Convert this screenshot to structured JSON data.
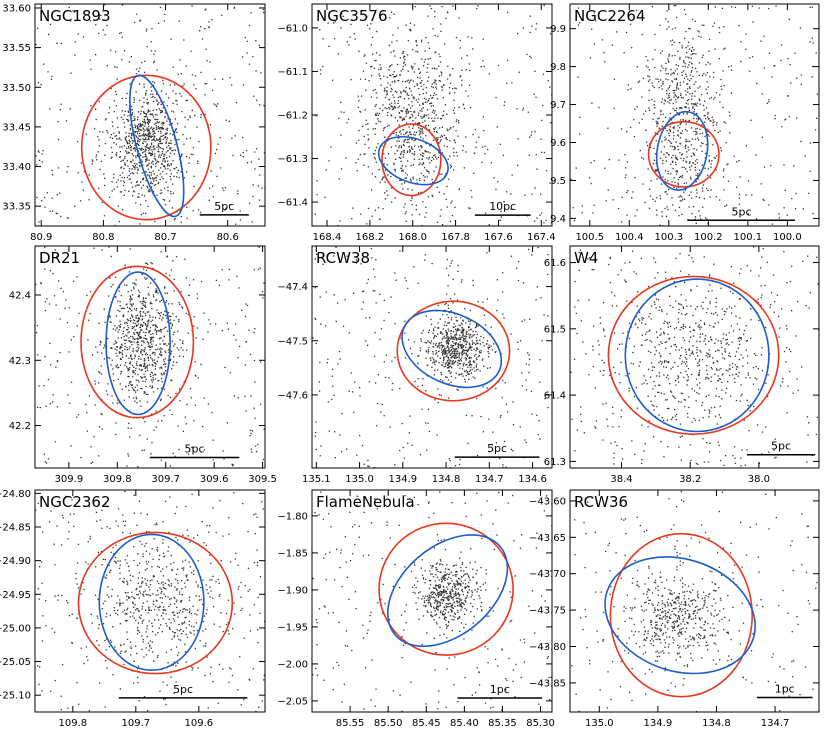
{
  "colors": {
    "red_ellipse": "#e8381c",
    "blue_ellipse": "#1c5ccc",
    "star_points": "#333333",
    "frame": "#000000"
  },
  "chart_data": [
    {
      "type": "scatter",
      "title": "NGC1893",
      "xlim": [
        80.91,
        80.54
      ],
      "ylim": [
        33.325,
        33.605
      ],
      "xticks": [
        80.9,
        80.8,
        80.7,
        80.6
      ],
      "xtick_labels": [
        "80.9",
        "80.8",
        "80.7",
        "80.6"
      ],
      "yticks": [
        33.35,
        33.4,
        33.45,
        33.5,
        33.55,
        33.6
      ],
      "ytick_labels": [
        "33.35",
        "33.40",
        "33.45",
        "33.50",
        "33.55",
        "33.60"
      ],
      "scale_bar": {
        "label": "5pc",
        "x1": 80.645,
        "x2": 80.566,
        "y": 33.339
      },
      "red_ellipse": {
        "cx": 80.731,
        "cy": 33.424,
        "rx": 0.104,
        "ry": 0.091,
        "angle": 0
      },
      "blue_ellipse": {
        "cx": 80.714,
        "cy": 33.426,
        "rx": 0.032,
        "ry": 0.092,
        "angle": -15
      },
      "stars": {
        "count": 1100,
        "cx": 80.73,
        "cy": 33.43,
        "sx": 0.03,
        "sy": 0.035,
        "background_fraction": 0.3
      }
    },
    {
      "type": "scatter",
      "title": "NGC3576",
      "xlim": [
        168.47,
        167.35
      ],
      "ylim": [
        -61.455,
        -60.945
      ],
      "xticks": [
        168.4,
        168.2,
        168.0,
        167.8,
        167.6,
        167.4
      ],
      "xtick_labels": [
        "168.4",
        "168.2",
        "168.0",
        "167.8",
        "167.6",
        "167.4"
      ],
      "yticks": [
        -61.4,
        -61.3,
        -61.2,
        -61.1,
        -61.0
      ],
      "ytick_labels": [
        "−61.4",
        "−61.3",
        "−61.2",
        "−61.1",
        "−61.0"
      ],
      "scale_bar": {
        "label": "10pc",
        "x1": 167.71,
        "x2": 167.45,
        "y": -61.43
      },
      "red_ellipse": {
        "cx": 168.006,
        "cy": -61.303,
        "rx": 0.137,
        "ry": 0.082,
        "angle": 0
      },
      "blue_ellipse": {
        "cx": 167.997,
        "cy": -61.305,
        "rx": 0.168,
        "ry": 0.05,
        "angle": 20
      },
      "stars": {
        "count": 1000,
        "cx": 168.0,
        "cy": -61.2,
        "sx": 0.12,
        "sy": 0.1,
        "background_fraction": 0.3
      }
    },
    {
      "type": "scatter",
      "title": "NGC2264",
      "xlim": [
        100.55,
        99.92
      ],
      "ylim": [
        9.38,
        9.965
      ],
      "xticks": [
        100.5,
        100.4,
        100.3,
        100.2,
        100.1,
        100.0
      ],
      "xtick_labels": [
        "100.5",
        "100.4",
        "100.3",
        "100.2",
        "100.1",
        "100.0"
      ],
      "yticks": [
        9.4,
        9.5,
        9.6,
        9.7,
        9.8,
        9.9
      ],
      "ytick_labels": [
        "9.4",
        "9.5",
        "9.6",
        "9.7",
        "9.8",
        "9.9"
      ],
      "scale_bar": {
        "label": "5pc",
        "x1": 100.251,
        "x2": 99.981,
        "y": 9.395
      },
      "red_ellipse": {
        "cx": 100.262,
        "cy": 9.569,
        "rx": 0.089,
        "ry": 0.086,
        "angle": 0
      },
      "blue_ellipse": {
        "cx": 100.266,
        "cy": 9.578,
        "rx": 0.063,
        "ry": 0.104,
        "angle": 10
      },
      "stars": {
        "count": 900,
        "cx": 100.27,
        "cy": 9.65,
        "sx": 0.05,
        "sy": 0.13,
        "background_fraction": 0.3
      }
    },
    {
      "type": "scatter",
      "title": "DR21",
      "xlim": [
        309.97,
        309.495
      ],
      "ylim": [
        42.135,
        42.475
      ],
      "xticks": [
        309.9,
        309.8,
        309.7,
        309.6,
        309.5
      ],
      "xtick_labels": [
        "309.9",
        "309.8",
        "309.7",
        "309.6",
        "309.5"
      ],
      "yticks": [
        42.2,
        42.3,
        42.4
      ],
      "ytick_labels": [
        "42.2",
        "42.3",
        "42.4"
      ],
      "scale_bar": {
        "label": "5pc",
        "x1": 309.733,
        "x2": 309.548,
        "y": 42.151
      },
      "red_ellipse": {
        "cx": 309.759,
        "cy": 42.328,
        "rx": 0.116,
        "ry": 0.116,
        "angle": 0
      },
      "blue_ellipse": {
        "cx": 309.757,
        "cy": 42.326,
        "rx": 0.066,
        "ry": 0.109,
        "angle": 0
      },
      "stars": {
        "count": 1000,
        "cx": 309.75,
        "cy": 42.33,
        "sx": 0.04,
        "sy": 0.05,
        "background_fraction": 0.3
      }
    },
    {
      "type": "scatter",
      "title": "RCW38",
      "xlim": [
        135.11,
        134.555
      ],
      "ylim": [
        -47.735,
        -47.325
      ],
      "xticks": [
        135.1,
        135.0,
        134.9,
        134.8,
        134.7,
        134.6
      ],
      "xtick_labels": [
        "135.1",
        "135.0",
        "134.9",
        "134.8",
        "134.7",
        "134.6"
      ],
      "yticks": [
        -47.6,
        -47.5,
        -47.4
      ],
      "ytick_labels": [
        "−47.6",
        "−47.5",
        "−47.4"
      ],
      "scale_bar": {
        "label": "5pc",
        "x1": 134.78,
        "x2": 134.584,
        "y": -47.715
      },
      "red_ellipse": {
        "cx": 134.783,
        "cy": -47.519,
        "rx": 0.13,
        "ry": 0.092,
        "angle": 0
      },
      "blue_ellipse": {
        "cx": 134.787,
        "cy": -47.515,
        "rx": 0.121,
        "ry": 0.064,
        "angle": 25
      },
      "stars": {
        "count": 900,
        "cx": 134.78,
        "cy": -47.515,
        "sx": 0.035,
        "sy": 0.03,
        "background_fraction": 0.35
      }
    },
    {
      "type": "scatter",
      "title": "W4",
      "xlim": [
        38.55,
        37.825
      ],
      "ylim": [
        61.29,
        61.625
      ],
      "xticks": [
        38.4,
        38.2,
        38.0
      ],
      "xtick_labels": [
        "38.4",
        "38.2",
        "38.0"
      ],
      "yticks": [
        61.3,
        61.4,
        61.5,
        61.6
      ],
      "ytick_labels": [
        "61.3",
        "61.4",
        "61.5",
        "61.6"
      ],
      "scale_bar": {
        "label": "5pc",
        "x1": 38.035,
        "x2": 37.836,
        "y": 61.31
      },
      "red_ellipse": {
        "cx": 38.19,
        "cy": 61.46,
        "rx": 0.248,
        "ry": 0.119,
        "angle": 0
      },
      "blue_ellipse": {
        "cx": 38.18,
        "cy": 61.46,
        "rx": 0.209,
        "ry": 0.115,
        "angle": 0
      },
      "stars": {
        "count": 800,
        "cx": 38.2,
        "cy": 61.46,
        "sx": 0.12,
        "sy": 0.06,
        "background_fraction": 0.35
      }
    },
    {
      "type": "scatter",
      "title": "NGC2362",
      "xlim": [
        109.86,
        109.495
      ],
      "ylim": [
        -25.125,
        -24.795
      ],
      "xticks": [
        109.8,
        109.7,
        109.6
      ],
      "xtick_labels": [
        "109.8",
        "109.7",
        "109.6"
      ],
      "yticks": [
        -25.1,
        -25.05,
        -25.0,
        -24.95,
        -24.9,
        -24.85,
        -24.8
      ],
      "ytick_labels": [
        "−25.10",
        "−25.05",
        "−25.00",
        "−24.95",
        "−24.90",
        "−24.85",
        "−24.80"
      ],
      "scale_bar": {
        "label": "5pc",
        "x1": 109.727,
        "x2": 109.523,
        "y": -25.104
      },
      "red_ellipse": {
        "cx": 109.669,
        "cy": -24.963,
        "rx": 0.122,
        "ry": 0.105,
        "angle": 0
      },
      "blue_ellipse": {
        "cx": 109.675,
        "cy": -24.962,
        "rx": 0.083,
        "ry": 0.101,
        "angle": 0
      },
      "stars": {
        "count": 750,
        "cx": 109.67,
        "cy": -24.96,
        "sx": 0.05,
        "sy": 0.05,
        "background_fraction": 0.4
      }
    },
    {
      "type": "scatter",
      "title": "FlameNebula",
      "xlim": [
        85.6,
        85.285
      ],
      "ylim": [
        -2.065,
        -1.765
      ],
      "xticks": [
        85.55,
        85.5,
        85.45,
        85.4,
        85.35,
        85.3
      ],
      "xtick_labels": [
        "85.55",
        "85.50",
        "85.45",
        "85.40",
        "85.35",
        "85.30"
      ],
      "yticks": [
        -2.05,
        -2.0,
        -1.95,
        -1.9,
        -1.85,
        -1.8
      ],
      "ytick_labels": [
        "−2.05",
        "−2.00",
        "−1.95",
        "−1.90",
        "−1.85",
        "−1.80"
      ],
      "scale_bar": {
        "label": "1pc",
        "x1": 85.409,
        "x2": 85.298,
        "y": -2.046
      },
      "red_ellipse": {
        "cx": 85.424,
        "cy": -1.899,
        "rx": 0.088,
        "ry": 0.089,
        "angle": 0
      },
      "blue_ellipse": {
        "cx": 85.422,
        "cy": -1.901,
        "rx": 0.09,
        "ry": 0.06,
        "angle": -40
      },
      "stars": {
        "count": 700,
        "cx": 85.42,
        "cy": -1.905,
        "sx": 0.02,
        "sy": 0.02,
        "background_fraction": 0.35
      }
    },
    {
      "type": "scatter",
      "title": "RCW36",
      "xlim": [
        135.05,
        134.625
      ],
      "ylim": [
        -43.89,
        -43.585
      ],
      "xticks": [
        135.0,
        134.9,
        134.8,
        134.7
      ],
      "xtick_labels": [
        "135.0",
        "134.9",
        "134.8",
        "134.7"
      ],
      "yticks": [
        -43.85,
        -43.8,
        -43.75,
        -43.7,
        -43.65,
        -43.6
      ],
      "ytick_labels": [
        "−43.85",
        "−43.80",
        "−43.75",
        "−43.70",
        "−43.65",
        "−43.60"
      ],
      "scale_bar": {
        "label": "1pc",
        "x1": 134.731,
        "x2": 134.636,
        "y": -43.87
      },
      "red_ellipse": {
        "cx": 134.86,
        "cy": -43.757,
        "rx": 0.121,
        "ry": 0.112,
        "angle": 0
      },
      "blue_ellipse": {
        "cx": 134.862,
        "cy": -43.757,
        "rx": 0.131,
        "ry": 0.077,
        "angle": 18
      },
      "stars": {
        "count": 650,
        "cx": 134.87,
        "cy": -43.76,
        "sx": 0.04,
        "sy": 0.03,
        "background_fraction": 0.3
      }
    }
  ]
}
